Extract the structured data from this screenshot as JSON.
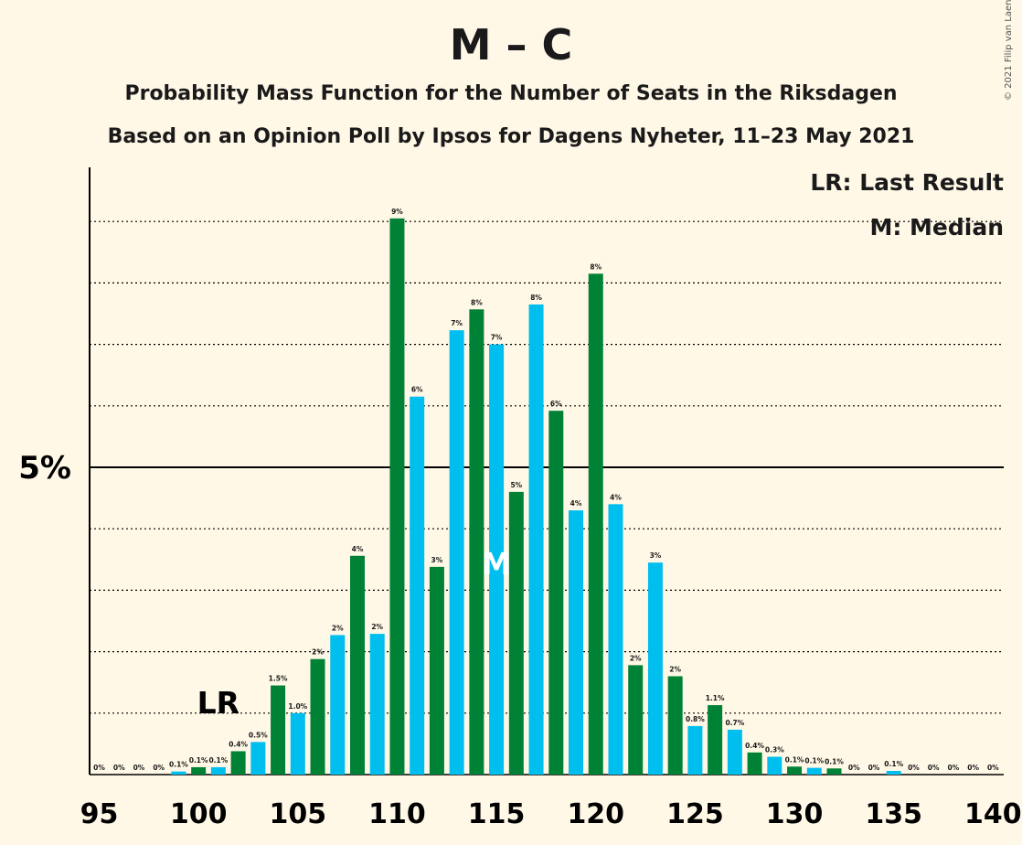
{
  "title": "M – C",
  "subtitle": "Probability Mass Function for the Number of Seats in the Riksdagen",
  "subtitle2": "Based on an Opinion Poll by Ipsos for Dagens Nyheter, 11–23 May 2021",
  "copyright": "© 2021 Filip van Laenen",
  "legend": {
    "last_result": "LR: Last Result",
    "median": "M: Median"
  },
  "colors": {
    "background": "#fff8e6",
    "blue": "#00bfef",
    "green": "#008236",
    "text": "#1a1a1a"
  },
  "chart_data": {
    "type": "bar",
    "x": [
      95,
      96,
      97,
      98,
      99,
      100,
      101,
      102,
      103,
      104,
      105,
      106,
      107,
      108,
      109,
      110,
      111,
      112,
      113,
      114,
      115,
      116,
      117,
      118,
      119,
      120,
      121,
      122,
      123,
      124,
      125,
      126,
      127,
      128,
      129,
      130,
      131,
      132,
      133,
      134,
      135,
      136,
      137,
      138,
      139,
      140
    ],
    "values": [
      0,
      0,
      0,
      0,
      0.05,
      0.12,
      0.12,
      0.38,
      0.53,
      1.45,
      1.0,
      1.88,
      2.27,
      3.56,
      2.29,
      9.05,
      6.15,
      3.38,
      7.23,
      7.57,
      7.0,
      4.6,
      7.65,
      5.92,
      4.3,
      8.15,
      4.4,
      1.78,
      3.45,
      1.6,
      0.79,
      1.13,
      0.73,
      0.36,
      0.29,
      0.13,
      0.11,
      0.1,
      0,
      0,
      0.06,
      0,
      0,
      0,
      0,
      0
    ],
    "labels": [
      "0%",
      "0%",
      "0%",
      "0%",
      "0.1%",
      "0.1%",
      "0.1%",
      "0.4%",
      "0.5%",
      "1.5%",
      "1.0%",
      "2%",
      "2%",
      "4%",
      "2%",
      "9%",
      "6%",
      "3%",
      "7%",
      "8%",
      "7%",
      "5%",
      "8%",
      "6%",
      "4%",
      "8%",
      "4%",
      "2%",
      "3%",
      "2%",
      "0.8%",
      "1.1%",
      "0.7%",
      "0.4%",
      "0.3%",
      "0.1%",
      "0.1%",
      "0.1%",
      "0%",
      "0%",
      "0.1%",
      "0%",
      "0%",
      "0%",
      "0%",
      "0%"
    ],
    "x_ticks": [
      "95",
      "100",
      "105",
      "110",
      "115",
      "120",
      "125",
      "130",
      "135",
      "140"
    ],
    "y_tick_label": "5%",
    "ylim": [
      0,
      9.8
    ],
    "last_result": {
      "seats": 101,
      "label": "LR"
    },
    "median": {
      "seats": 115,
      "label": "M"
    },
    "grid": true
  }
}
